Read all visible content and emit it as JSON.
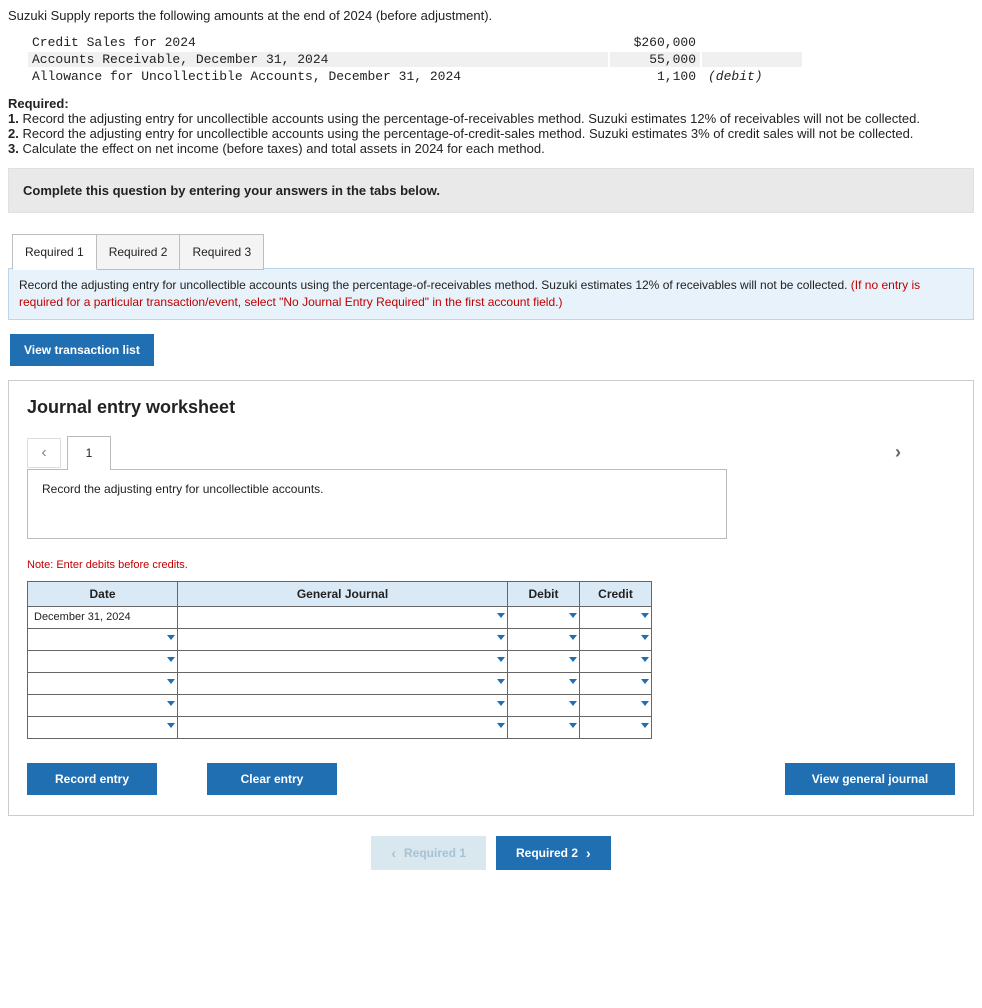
{
  "intro": "Suzuki Supply reports the following amounts at the end of 2024 (before adjustment).",
  "data_rows": [
    {
      "label": "Credit Sales for 2024",
      "value": "$260,000",
      "note": "",
      "highlight": false
    },
    {
      "label": "Accounts Receivable, December 31, 2024",
      "value": "55,000",
      "note": "",
      "highlight": true
    },
    {
      "label": "Allowance for Uncollectible Accounts, December 31, 2024",
      "value": "1,100",
      "note": "(debit)",
      "highlight": false
    }
  ],
  "required": {
    "heading": "Required:",
    "items": [
      {
        "num": "1.",
        "text": " Record the adjusting entry for uncollectible accounts using the percentage-of-receivables method. Suzuki estimates 12% of receivables will not be collected."
      },
      {
        "num": "2.",
        "text": " Record the adjusting entry for uncollectible accounts using the percentage-of-credit-sales method. Suzuki estimates 3% of credit sales will not be collected."
      },
      {
        "num": "3.",
        "text": " Calculate the effect on net income (before taxes) and total assets in 2024 for each method."
      }
    ]
  },
  "instruction_bar": "Complete this question by entering your answers in the tabs below.",
  "tabs": [
    {
      "label": "Required 1",
      "active": true
    },
    {
      "label": "Required 2",
      "active": false
    },
    {
      "label": "Required 3",
      "active": false
    }
  ],
  "prompt": {
    "main": "Record the adjusting entry for uncollectible accounts using the percentage-of-receivables method. Suzuki estimates 12% of receivables will not be collected. ",
    "hint": "(If no entry is required for a particular transaction/event, select \"No Journal Entry Required\" in the first account field.)"
  },
  "buttons": {
    "view_transaction_list": "View transaction list",
    "record_entry": "Record entry",
    "clear_entry": "Clear entry",
    "view_general_journal": "View general journal"
  },
  "worksheet": {
    "title": "Journal entry worksheet",
    "step_label": "1",
    "description": "Record the adjusting entry for uncollectible accounts.",
    "note": "Note: Enter debits before credits.",
    "columns": {
      "date": "Date",
      "general_journal": "General Journal",
      "debit": "Debit",
      "credit": "Credit"
    },
    "first_date": "December 31, 2024",
    "row_count": 6
  },
  "bottom_nav": {
    "prev": "Required 1",
    "next": "Required 2"
  },
  "colors": {
    "blue_button": "#1f6fb2",
    "prompt_bg": "#e7f2fa",
    "hint_text": "#c00000",
    "table_header_bg": "#d9e9f5",
    "instruction_bg": "#e9e9e9"
  }
}
